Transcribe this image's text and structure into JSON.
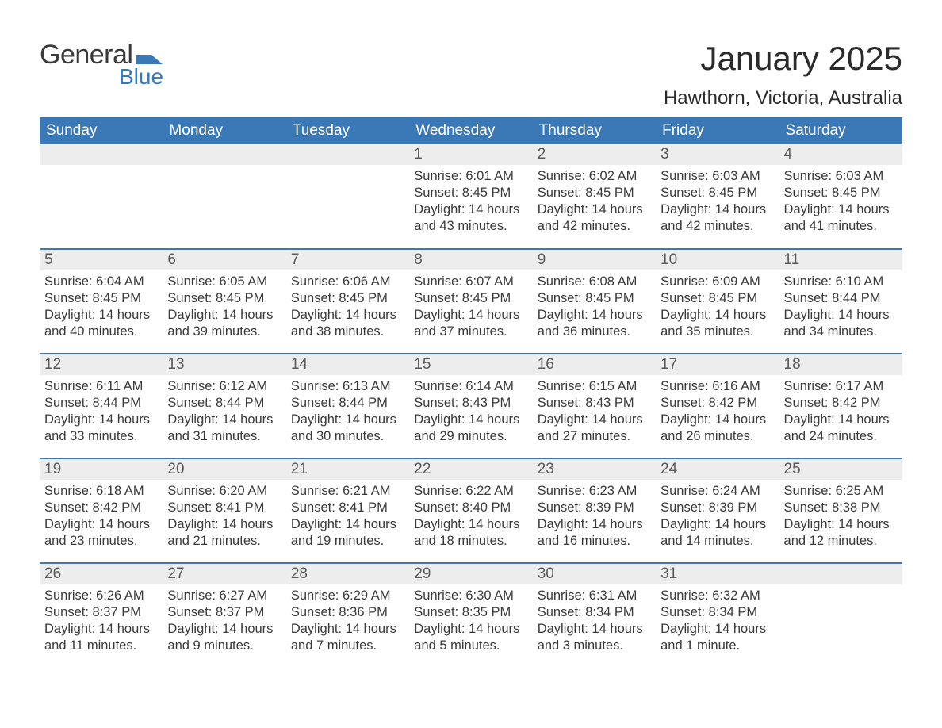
{
  "logo": {
    "general": "General",
    "blue": "Blue",
    "brand_color": "#3a78b6"
  },
  "title": "January 2025",
  "location": "Hawthorn, Victoria, Australia",
  "calendar": {
    "header_bg": "#3a78b6",
    "header_text_color": "#ffffff",
    "row_separator_color": "#3a78b6",
    "daynum_bg": "#ededed",
    "text_color": "#3a3a3a",
    "columns": [
      "Sunday",
      "Monday",
      "Tuesday",
      "Wednesday",
      "Thursday",
      "Friday",
      "Saturday"
    ],
    "weeks": [
      [
        null,
        null,
        null,
        {
          "date": "1",
          "sunrise": "6:01 AM",
          "sunset": "8:45 PM",
          "daylight": "14 hours and 43 minutes."
        },
        {
          "date": "2",
          "sunrise": "6:02 AM",
          "sunset": "8:45 PM",
          "daylight": "14 hours and 42 minutes."
        },
        {
          "date": "3",
          "sunrise": "6:03 AM",
          "sunset": "8:45 PM",
          "daylight": "14 hours and 42 minutes."
        },
        {
          "date": "4",
          "sunrise": "6:03 AM",
          "sunset": "8:45 PM",
          "daylight": "14 hours and 41 minutes."
        }
      ],
      [
        {
          "date": "5",
          "sunrise": "6:04 AM",
          "sunset": "8:45 PM",
          "daylight": "14 hours and 40 minutes."
        },
        {
          "date": "6",
          "sunrise": "6:05 AM",
          "sunset": "8:45 PM",
          "daylight": "14 hours and 39 minutes."
        },
        {
          "date": "7",
          "sunrise": "6:06 AM",
          "sunset": "8:45 PM",
          "daylight": "14 hours and 38 minutes."
        },
        {
          "date": "8",
          "sunrise": "6:07 AM",
          "sunset": "8:45 PM",
          "daylight": "14 hours and 37 minutes."
        },
        {
          "date": "9",
          "sunrise": "6:08 AM",
          "sunset": "8:45 PM",
          "daylight": "14 hours and 36 minutes."
        },
        {
          "date": "10",
          "sunrise": "6:09 AM",
          "sunset": "8:45 PM",
          "daylight": "14 hours and 35 minutes."
        },
        {
          "date": "11",
          "sunrise": "6:10 AM",
          "sunset": "8:44 PM",
          "daylight": "14 hours and 34 minutes."
        }
      ],
      [
        {
          "date": "12",
          "sunrise": "6:11 AM",
          "sunset": "8:44 PM",
          "daylight": "14 hours and 33 minutes."
        },
        {
          "date": "13",
          "sunrise": "6:12 AM",
          "sunset": "8:44 PM",
          "daylight": "14 hours and 31 minutes."
        },
        {
          "date": "14",
          "sunrise": "6:13 AM",
          "sunset": "8:44 PM",
          "daylight": "14 hours and 30 minutes."
        },
        {
          "date": "15",
          "sunrise": "6:14 AM",
          "sunset": "8:43 PM",
          "daylight": "14 hours and 29 minutes."
        },
        {
          "date": "16",
          "sunrise": "6:15 AM",
          "sunset": "8:43 PM",
          "daylight": "14 hours and 27 minutes."
        },
        {
          "date": "17",
          "sunrise": "6:16 AM",
          "sunset": "8:42 PM",
          "daylight": "14 hours and 26 minutes."
        },
        {
          "date": "18",
          "sunrise": "6:17 AM",
          "sunset": "8:42 PM",
          "daylight": "14 hours and 24 minutes."
        }
      ],
      [
        {
          "date": "19",
          "sunrise": "6:18 AM",
          "sunset": "8:42 PM",
          "daylight": "14 hours and 23 minutes."
        },
        {
          "date": "20",
          "sunrise": "6:20 AM",
          "sunset": "8:41 PM",
          "daylight": "14 hours and 21 minutes."
        },
        {
          "date": "21",
          "sunrise": "6:21 AM",
          "sunset": "8:41 PM",
          "daylight": "14 hours and 19 minutes."
        },
        {
          "date": "22",
          "sunrise": "6:22 AM",
          "sunset": "8:40 PM",
          "daylight": "14 hours and 18 minutes."
        },
        {
          "date": "23",
          "sunrise": "6:23 AM",
          "sunset": "8:39 PM",
          "daylight": "14 hours and 16 minutes."
        },
        {
          "date": "24",
          "sunrise": "6:24 AM",
          "sunset": "8:39 PM",
          "daylight": "14 hours and 14 minutes."
        },
        {
          "date": "25",
          "sunrise": "6:25 AM",
          "sunset": "8:38 PM",
          "daylight": "14 hours and 12 minutes."
        }
      ],
      [
        {
          "date": "26",
          "sunrise": "6:26 AM",
          "sunset": "8:37 PM",
          "daylight": "14 hours and 11 minutes."
        },
        {
          "date": "27",
          "sunrise": "6:27 AM",
          "sunset": "8:37 PM",
          "daylight": "14 hours and 9 minutes."
        },
        {
          "date": "28",
          "sunrise": "6:29 AM",
          "sunset": "8:36 PM",
          "daylight": "14 hours and 7 minutes."
        },
        {
          "date": "29",
          "sunrise": "6:30 AM",
          "sunset": "8:35 PM",
          "daylight": "14 hours and 5 minutes."
        },
        {
          "date": "30",
          "sunrise": "6:31 AM",
          "sunset": "8:34 PM",
          "daylight": "14 hours and 3 minutes."
        },
        {
          "date": "31",
          "sunrise": "6:32 AM",
          "sunset": "8:34 PM",
          "daylight": "14 hours and 1 minute."
        },
        null
      ]
    ],
    "labels": {
      "sunrise": "Sunrise:",
      "sunset": "Sunset:",
      "daylight": "Daylight:"
    }
  }
}
